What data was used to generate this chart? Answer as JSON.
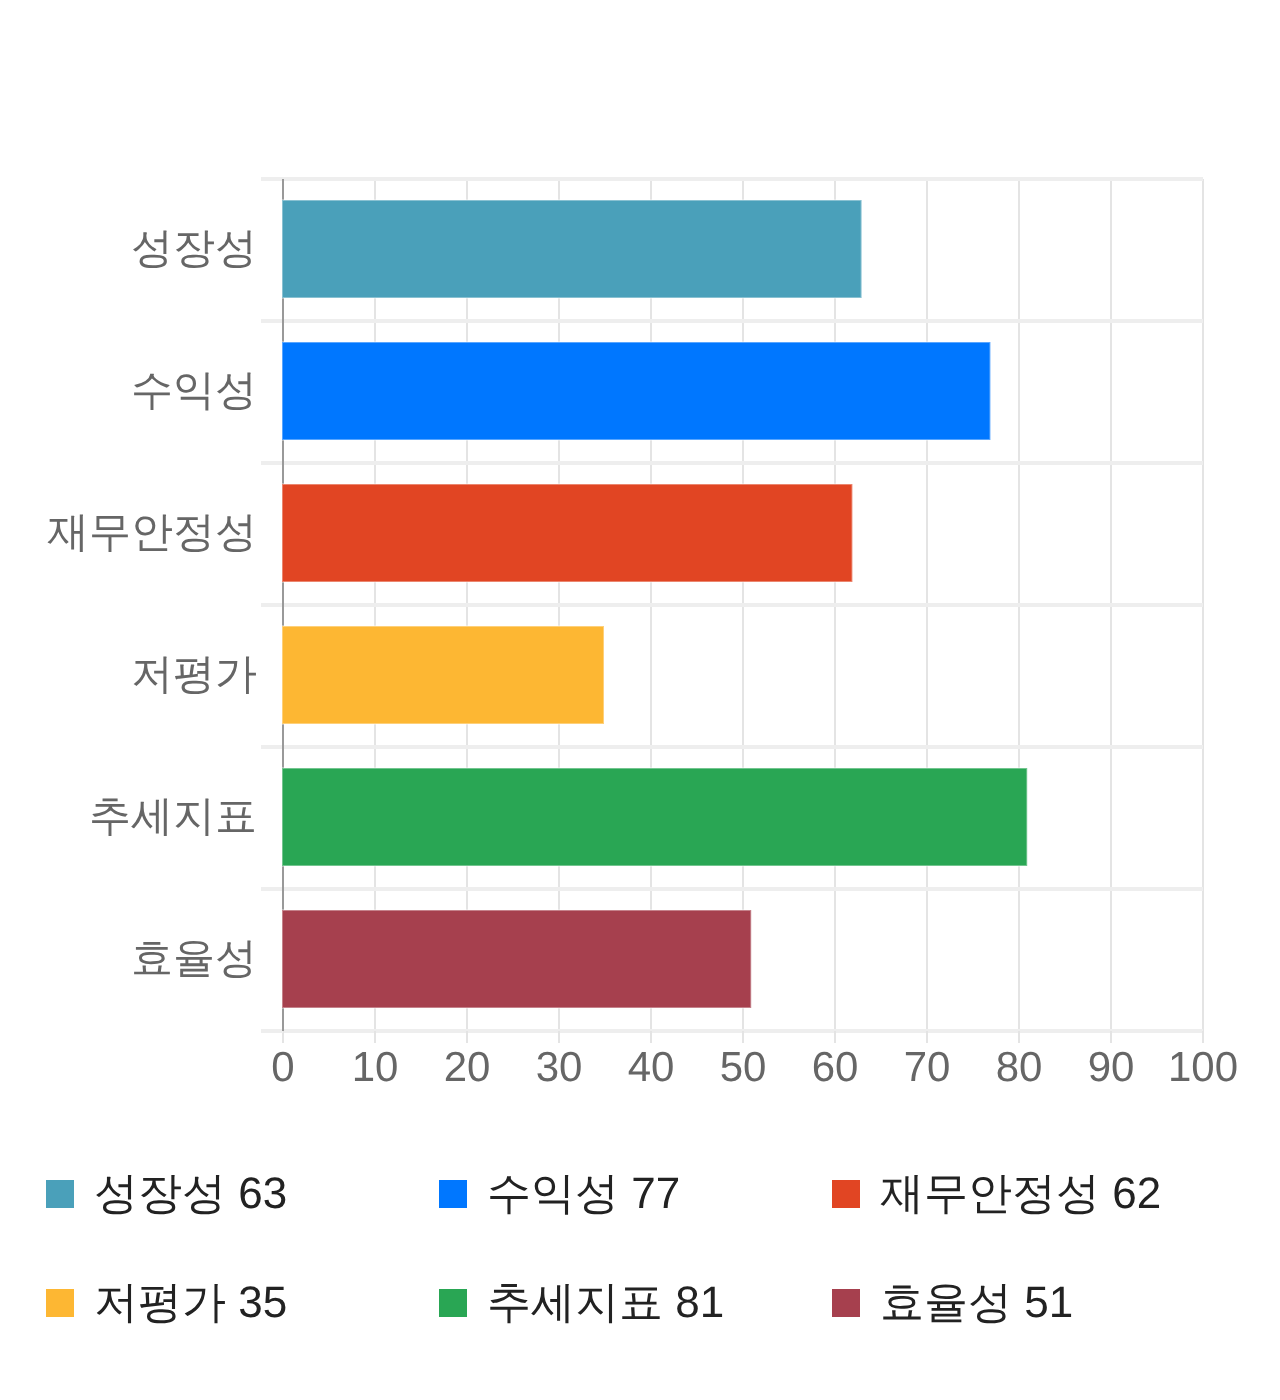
{
  "chart_data": {
    "type": "bar",
    "orientation": "horizontal",
    "categories": [
      "성장성",
      "수익성",
      "재무안정성",
      "저평가",
      "추세지표",
      "효율성"
    ],
    "series": [
      {
        "name": "성장성 63",
        "color": "#4aa0ba",
        "values": [
          63,
          null,
          null,
          null,
          null,
          null
        ]
      },
      {
        "name": "수익성 77",
        "color": "#0077ff",
        "values": [
          null,
          77,
          null,
          null,
          null,
          null
        ]
      },
      {
        "name": "재무안정성 62",
        "color": "#e14523",
        "values": [
          null,
          null,
          62,
          null,
          null,
          null
        ]
      },
      {
        "name": "저평가 35",
        "color": "#fdb733",
        "values": [
          null,
          null,
          null,
          35,
          null,
          null
        ]
      },
      {
        "name": "추세지표 81",
        "color": "#29a654",
        "values": [
          null,
          null,
          null,
          null,
          81,
          null
        ]
      },
      {
        "name": "효율성 51",
        "color": "#a6404e",
        "values": [
          null,
          null,
          null,
          null,
          null,
          51
        ]
      }
    ],
    "xlim": [
      0,
      100
    ],
    "xticks": [
      0,
      10,
      20,
      30,
      40,
      50,
      60,
      70,
      80,
      90,
      100
    ],
    "grid": true,
    "legend": "bottom"
  }
}
